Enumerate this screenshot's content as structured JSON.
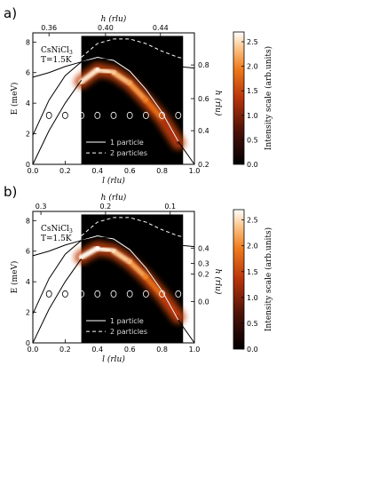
{
  "panel_labels": [
    "a)",
    "b)"
  ],
  "sample": {
    "name": "CsNiCl",
    "subscript": "3",
    "temperature": "T=1.5K"
  },
  "legend": {
    "one": "1 particle",
    "two": "2 particles"
  },
  "colors": {
    "one_particle": "#ffffff",
    "two_particles": "#ffffff",
    "map_background": "#000000"
  },
  "chart_data": [
    {
      "type": "heatmap",
      "panel": "a)",
      "xlabel": "l (rlu)",
      "ylabel": "E (meV)",
      "x_ticks": [
        "0.0",
        "0.2",
        "0.4",
        "0.6",
        "0.8",
        "1.0"
      ],
      "y_ticks": [
        "0",
        "2",
        "4",
        "6",
        "8"
      ],
      "xlim": [
        0,
        1
      ],
      "ylim": [
        0,
        8.6
      ],
      "top_axis_label": "h (rlu)",
      "top_ticks": [
        {
          "l": 0.1,
          "label": "0.36"
        },
        {
          "l": 0.45,
          "label": "0.40"
        },
        {
          "l": 0.79,
          "label": "0.44"
        }
      ],
      "right_axis_label": "h (rlu)",
      "right_ticks": [
        {
          "E": 0.0,
          "label": "0.2"
        },
        {
          "E": 2.2,
          "label": "0.4"
        },
        {
          "E": 4.3,
          "label": "0.6"
        },
        {
          "E": 6.5,
          "label": "0.8"
        }
      ],
      "colorbar": {
        "label": "Intensity scale (arb.units)",
        "ticks": [
          "0.0",
          "0.5",
          "1.0",
          "1.5",
          "2.0",
          "2.5"
        ],
        "range": [
          0,
          2.7
        ]
      },
      "map_region": {
        "l": [
          0.3,
          0.93
        ],
        "E": [
          0,
          8.4
        ]
      },
      "series": [
        {
          "name": "1 particle",
          "style": "solid",
          "x": [
            0.0,
            0.1,
            0.2,
            0.3,
            0.4,
            0.5,
            0.6,
            0.7,
            0.8,
            0.9,
            1.0
          ],
          "y": [
            1.9,
            4.2,
            5.8,
            6.7,
            7.0,
            6.8,
            6.1,
            4.9,
            3.4,
            1.5,
            0.0
          ]
        },
        {
          "name": "2 particles",
          "style": "dashed",
          "x": [
            0.3,
            0.4,
            0.5,
            0.6,
            0.7,
            0.8,
            0.9,
            1.0
          ],
          "y": [
            7.0,
            7.9,
            8.2,
            8.2,
            7.9,
            7.4,
            7.0,
            6.8
          ]
        },
        {
          "name": "",
          "style": "solid",
          "x": [
            0.0,
            0.1,
            0.2,
            0.3,
            0.4,
            0.5,
            0.6,
            0.7,
            0.8,
            0.9,
            1.0
          ],
          "y": [
            5.7,
            6.0,
            6.4,
            6.7,
            6.9,
            6.9,
            6.8,
            6.7,
            6.6,
            6.4,
            6.3
          ]
        },
        {
          "name": "",
          "style": "solid",
          "x": [
            0.0,
            0.1,
            0.2,
            0.3
          ],
          "y": [
            0.0,
            2.2,
            4.0,
            5.5
          ]
        }
      ],
      "intensity_ridge": {
        "x": [
          0.3,
          0.4,
          0.5,
          0.6,
          0.7,
          0.8,
          0.9
        ],
        "y": [
          5.4,
          6.2,
          6.0,
          5.3,
          4.2,
          3.0,
          1.4
        ],
        "intensity": [
          2.5,
          2.6,
          2.4,
          2.2,
          2.0,
          1.6,
          1.0
        ]
      },
      "circles": {
        "l": [
          0.1,
          0.2,
          0.3,
          0.4,
          0.5,
          0.6,
          0.7,
          0.8,
          0.9
        ],
        "E": [
          3.2,
          3.2,
          3.2,
          3.2,
          3.2,
          3.2,
          3.2,
          3.2,
          3.2
        ]
      }
    },
    {
      "type": "heatmap",
      "panel": "b)",
      "xlabel": "l (rlu)",
      "ylabel": "E (meV)",
      "x_ticks": [
        "0.0",
        "0.2",
        "0.4",
        "0.6",
        "0.8",
        "1.0"
      ],
      "y_ticks": [
        "0",
        "2",
        "4",
        "6",
        "8"
      ],
      "xlim": [
        0,
        1
      ],
      "ylim": [
        0,
        8.6
      ],
      "top_axis_label": "h (rlu)",
      "top_ticks": [
        {
          "l": 0.05,
          "label": "0.3"
        },
        {
          "l": 0.45,
          "label": "0.2"
        },
        {
          "l": 0.85,
          "label": "0.1"
        }
      ],
      "right_axis_label": "h (rlu)",
      "right_ticks": [
        {
          "E": 2.7,
          "label": "0.0"
        },
        {
          "E": 4.5,
          "label": "0.2"
        },
        {
          "E": 6.2,
          "label": "0.4"
        },
        {
          "E": 5.2,
          "label": "0.3"
        }
      ],
      "colorbar": {
        "label": "Intensity scale (arb.units)",
        "ticks": [
          "0.0",
          "0.5",
          "1.0",
          "1.5",
          "2.0",
          "2.5"
        ],
        "range": [
          0,
          2.7
        ]
      },
      "map_region": {
        "l": [
          0.3,
          0.93
        ],
        "E": [
          0,
          8.4
        ]
      },
      "series": [
        {
          "name": "1 particle",
          "style": "solid",
          "x": [
            0.0,
            0.1,
            0.2,
            0.3,
            0.4,
            0.5,
            0.6,
            0.7,
            0.8,
            0.9,
            1.0
          ],
          "y": [
            1.9,
            4.2,
            5.8,
            6.7,
            7.0,
            6.8,
            6.1,
            4.9,
            3.4,
            1.5,
            0.0
          ]
        },
        {
          "name": "2 particles",
          "style": "dashed",
          "x": [
            0.3,
            0.4,
            0.5,
            0.6,
            0.7,
            0.8,
            0.9,
            1.0
          ],
          "y": [
            7.0,
            7.9,
            8.2,
            8.2,
            7.9,
            7.4,
            7.0,
            6.8
          ]
        },
        {
          "name": "",
          "style": "solid",
          "x": [
            0.0,
            0.1,
            0.2,
            0.3,
            0.4,
            0.5,
            0.6,
            0.7,
            0.8,
            0.9,
            1.0
          ],
          "y": [
            5.7,
            6.0,
            6.4,
            6.7,
            6.9,
            6.9,
            6.8,
            6.7,
            6.6,
            6.4,
            6.3
          ]
        },
        {
          "name": "",
          "style": "solid",
          "x": [
            0.0,
            0.1,
            0.2,
            0.3
          ],
          "y": [
            0.0,
            2.2,
            4.0,
            5.5
          ]
        }
      ],
      "intensity_ridge": {
        "x": [
          0.3,
          0.4,
          0.5,
          0.6,
          0.7,
          0.8,
          0.9
        ],
        "y": [
          5.6,
          6.2,
          6.0,
          5.3,
          4.3,
          3.1,
          1.7
        ],
        "intensity": [
          2.6,
          2.7,
          2.5,
          2.3,
          2.0,
          1.6,
          1.2
        ]
      },
      "circles": {
        "l": [
          0.1,
          0.2,
          0.3,
          0.4,
          0.5,
          0.6,
          0.7,
          0.8,
          0.9
        ],
        "E": [
          3.2,
          3.2,
          3.2,
          3.2,
          3.2,
          3.2,
          3.2,
          3.2,
          3.2
        ]
      }
    }
  ]
}
